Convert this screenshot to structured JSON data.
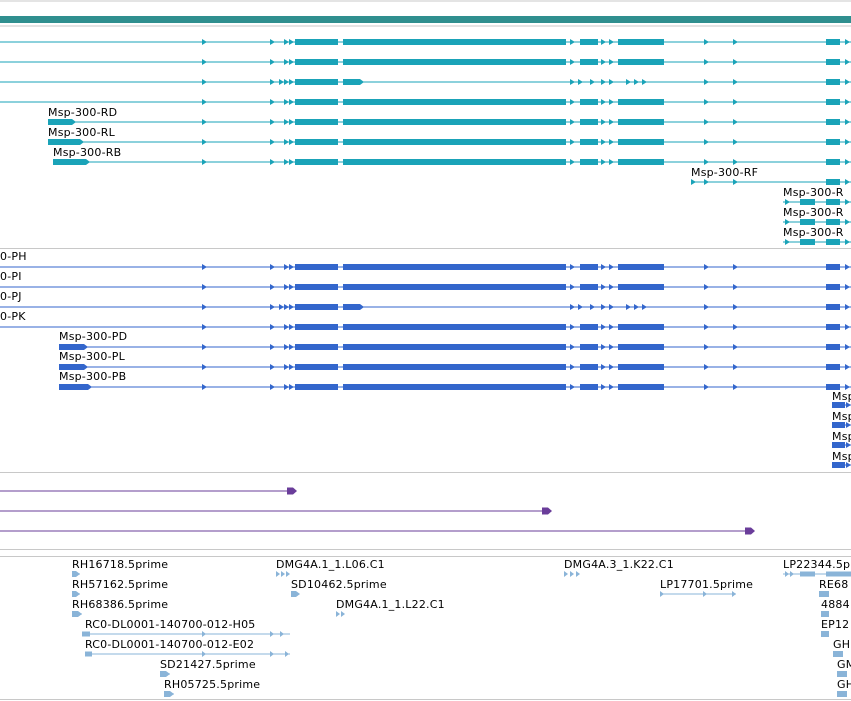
{
  "colors": {
    "gene_bar": "#2f8f8f",
    "transcript_teal": "#1aa3b8",
    "transcript_blue": "#3366cc",
    "protein": "#6a3d9a",
    "est": "#8ab4d8",
    "divider": "#c8c8c8"
  },
  "tracks": {
    "transcripts_a": {
      "labels": [
        "Msp-300-RD",
        "Msp-300-RL",
        "Msp-300-RB",
        "Msp-300-RF",
        "Msp-300-R",
        "Msp-300-R",
        "Msp-300-R"
      ]
    },
    "transcripts_b": {
      "labels": [
        "0-PH",
        "0-PI",
        "0-PJ",
        "0-PK",
        "Msp-300-PD",
        "Msp-300-PL",
        "Msp-300-PB",
        "Msp",
        "Msp",
        "Msp",
        "Msp"
      ]
    },
    "ests": {
      "labels": [
        "RH16718.5prime",
        "RH57162.5prime",
        "RH68386.5prime",
        "RC0-DL0001-140700-012-H05",
        "RC0-DL0001-140700-012-E02",
        "SD21427.5prime",
        "RH05725.5prime",
        "DMG4A.1_1.L06.C1",
        "SD10462.5prime",
        "DMG4A.1_1.L22.C1",
        "DMG4A.3_1.K22.C1",
        "LP17701.5prime",
        "LP22344.5p",
        "RE68",
        "4884",
        "EP12",
        "GH",
        "GM",
        "GH"
      ]
    }
  }
}
